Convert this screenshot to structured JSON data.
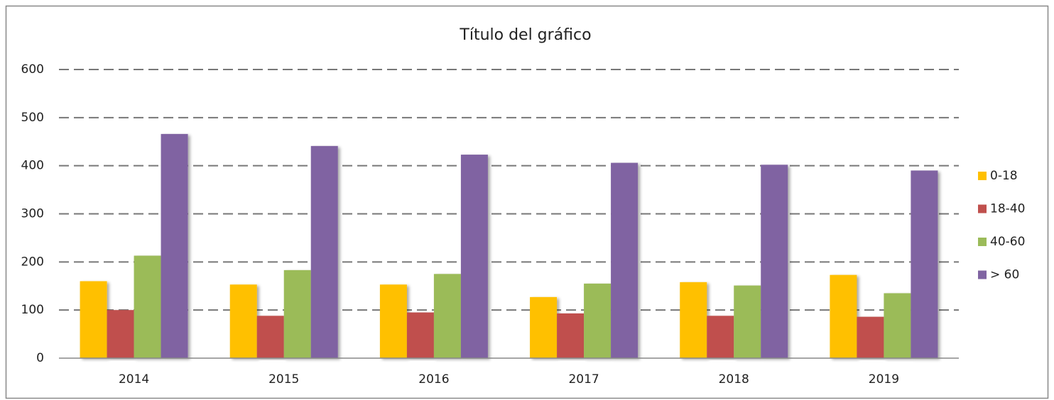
{
  "chart_data": {
    "type": "bar",
    "title": "Título del gráfico",
    "categories": [
      "2014",
      "2015",
      "2016",
      "2017",
      "2018",
      "2019"
    ],
    "series": [
      {
        "name": "0-18",
        "color": "#ffc000",
        "values": [
          160,
          153,
          153,
          127,
          158,
          173
        ]
      },
      {
        "name": "18-40",
        "color": "#c0504d",
        "values": [
          100,
          88,
          95,
          93,
          88,
          86
        ]
      },
      {
        "name": "40-60",
        "color": "#9bbb59",
        "values": [
          213,
          183,
          175,
          155,
          151,
          135
        ]
      },
      {
        "name": "> 60",
        "color": "#8064a2",
        "values": [
          466,
          441,
          423,
          406,
          402,
          390
        ]
      }
    ],
    "ylim": [
      0,
      600
    ],
    "yticks": [
      0,
      100,
      200,
      300,
      400,
      500,
      600
    ],
    "grid": true,
    "legend": "right"
  }
}
